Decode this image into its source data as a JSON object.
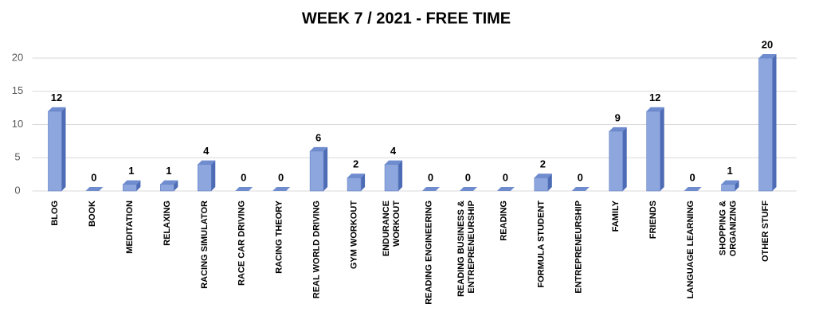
{
  "chart_data": {
    "type": "bar",
    "title": "WEEK 7 / 2021  - FREE TIME",
    "categories": [
      "BLOG",
      "BOOK",
      "MEDITATION",
      "RELAXING",
      "RACING SIMULATOR",
      "RACE CAR DRIVING",
      "RACING THEORY",
      "REAL WORLD DRIVING",
      "GYM WORKOUT",
      "ENDURANCE\nWORKOUT",
      "READING ENGINEERING",
      "READING BUSINESS &\nENTREPRENEURSHIP",
      "READING",
      "FORMULA STUDENT",
      "ENTREPRENEURSHIP",
      "FAMILY",
      "FRIENDS",
      "LANGUAGE LEARNING",
      "SHOPPING &\nORGANIZING",
      "OTHER STUFF"
    ],
    "values": [
      12,
      0,
      1,
      1,
      4,
      0,
      0,
      6,
      2,
      4,
      0,
      0,
      0,
      2,
      0,
      9,
      12,
      0,
      1,
      20
    ],
    "color": "#8ea6de",
    "ylim": [
      0,
      20
    ],
    "yticks": [
      0,
      5,
      10,
      15,
      20
    ],
    "grid": true
  }
}
